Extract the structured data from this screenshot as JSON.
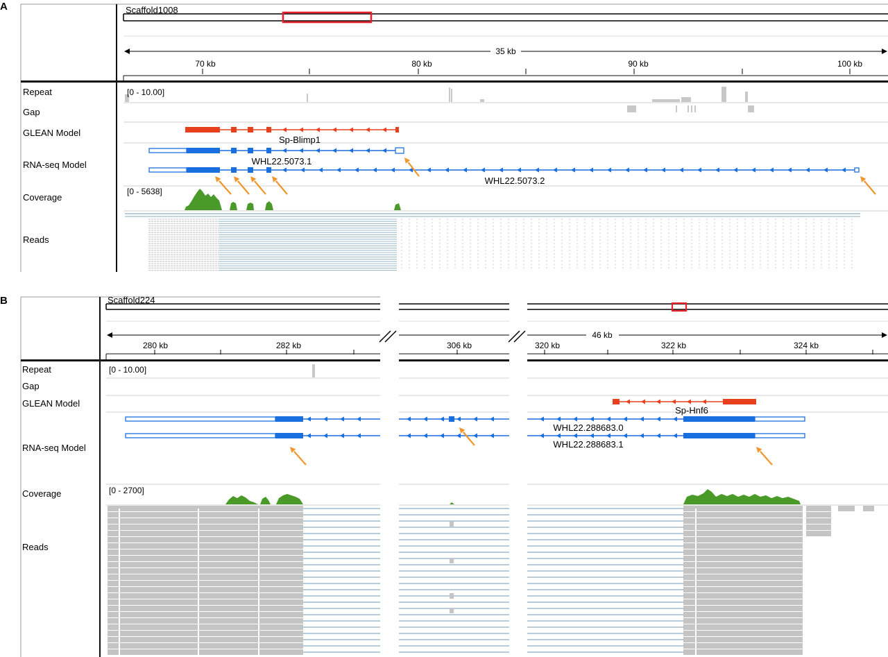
{
  "colors": {
    "glean": "#e8401c",
    "rnaseq": "#1a6fe0",
    "coverage": "#4a9a2a",
    "reads_line": "#9fbccf",
    "reads_block": "#c4c4c4",
    "arrow": "#f0962a",
    "locator": "#e8202a",
    "repeat": "#c8c8c8",
    "divider": "#d2d2d2"
  },
  "panels": [
    {
      "letter": "A",
      "scaffold": "Scaffold1008",
      "span_label": "35 kb",
      "ticks": [
        "70 kb",
        "80 kb",
        "90 kb",
        "100 kb"
      ],
      "tracks": [
        "Repeat",
        "Gap",
        "GLEAN Model",
        "RNA-seq Model",
        "Coverage",
        "Reads"
      ],
      "repeat_range": "[0 - 10.00]",
      "coverage_range": "[0 - 5638]",
      "glean_gene": "Sp-Blimp1",
      "transcripts": [
        "WHL22.5073.1",
        "WHL22.5073.2"
      ]
    },
    {
      "letter": "B",
      "scaffold": "Scaffold224",
      "span_label": "46 kb",
      "ticks": [
        "280 kb",
        "282 kb",
        "306 kb",
        "320 kb",
        "322 kb",
        "324 kb"
      ],
      "tracks": [
        "Repeat",
        "Gap",
        "GLEAN Model",
        "RNA-seq Model",
        "Coverage",
        "Reads"
      ],
      "repeat_range": "[0 - 10.00]",
      "coverage_range": "[0 - 2700]",
      "glean_gene": "Sp-Hnf6",
      "transcripts": [
        "WHL22.288683.0",
        "WHL22.288683.1"
      ]
    }
  ]
}
